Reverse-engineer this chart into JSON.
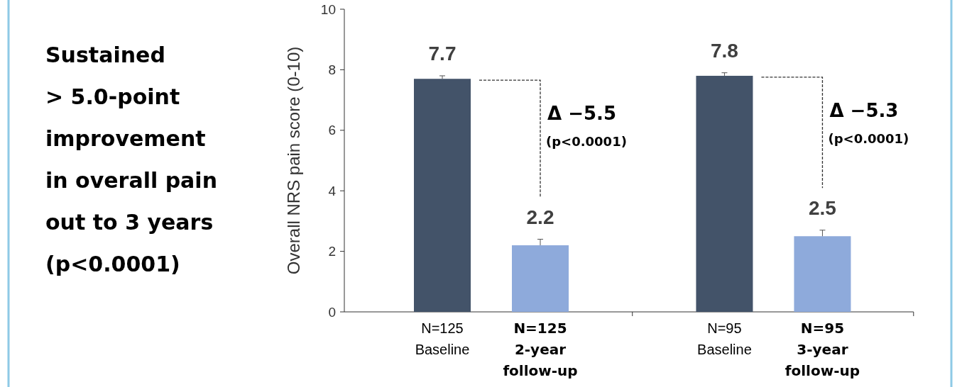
{
  "chart_data": {
    "type": "bar",
    "title": "Sustained\n> 5.0-point\nimprovement\nin overall pain\nout to 3 years\n(p<0.0001)",
    "ylabel": "Overall NRS pain score (0-10)",
    "categories": [
      "N=125\nBaseline",
      "N=125\n2-year\nfollow-up",
      "N=95\nBaseline",
      "N=95\n3-year\nfollow-up"
    ],
    "values": [
      7.7,
      2.2,
      7.8,
      2.5
    ],
    "colors": [
      "#435369",
      "#8eaadb",
      "#435369",
      "#8eaadb"
    ],
    "errors": [
      0.1,
      0.2,
      0.1,
      0.2
    ],
    "data_labels": true,
    "annotations": [
      "Δ −5.5",
      "(p<0.0001)",
      "Δ −5.3",
      "(p<0.0001)"
    ],
    "ylim": [
      0,
      10
    ],
    "yticks": [
      0,
      2,
      4,
      6,
      8,
      10
    ],
    "grid": false
  }
}
